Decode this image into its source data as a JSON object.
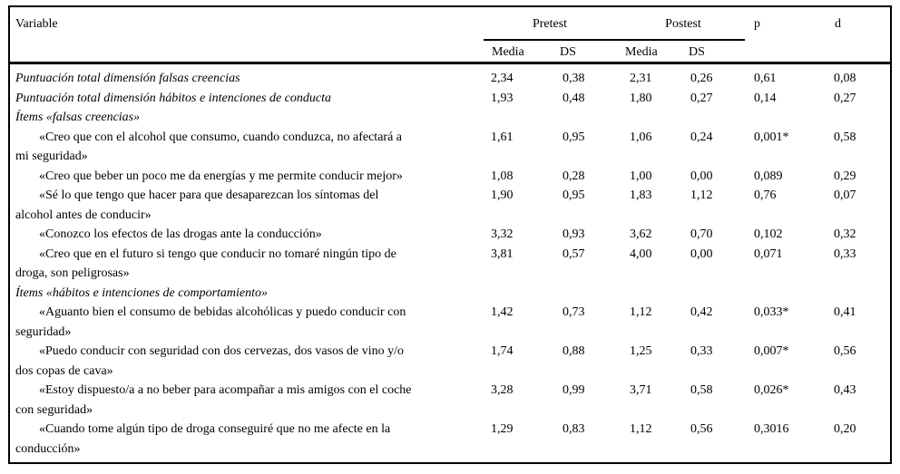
{
  "colors": {
    "text": "#000000",
    "background": "#ffffff",
    "rule": "#000000"
  },
  "table": {
    "headers": {
      "variable": "Variable",
      "pretest": "Pretest",
      "postest": "Postest",
      "pre_media": "Media",
      "pre_ds": "DS",
      "post_media": "Media",
      "post_ds": "DS",
      "p": "p",
      "d": "d"
    },
    "rows": [
      {
        "type": "total",
        "variable": "Puntuación total dimensión falsas creencias",
        "pre_media": "2,34",
        "pre_ds": "0,38",
        "post_media": "2,31",
        "post_ds": "0,26",
        "p": "0,61",
        "d": "0,08"
      },
      {
        "type": "total",
        "variable": "Puntuación total dimensión hábitos e intenciones de conducta",
        "pre_media": "1,93",
        "pre_ds": "0,48",
        "post_media": "1,80",
        "post_ds": "0,27",
        "p": "0,14",
        "d": "0,27"
      },
      {
        "type": "section",
        "variable": "Ítems «falsas creencias»",
        "pre_media": "",
        "pre_ds": "",
        "post_media": "",
        "post_ds": "",
        "p": "",
        "d": ""
      },
      {
        "type": "item",
        "variable": "«Creo que con el alcohol que consumo, cuando conduzca, no afectará a mi seguridad»",
        "pre_media": "1,61",
        "pre_ds": "0,95",
        "post_media": "1,06",
        "post_ds": "0,24",
        "p": "0,001*",
        "d": "0,58"
      },
      {
        "type": "item",
        "variable": "«Creo que beber un poco me da energías y me permite conducir mejor»",
        "pre_media": "1,08",
        "pre_ds": "0,28",
        "post_media": "1,00",
        "post_ds": "0,00",
        "p": "0,089",
        "d": "0,29"
      },
      {
        "type": "item",
        "variable": "«Sé lo que tengo que hacer para que desaparezcan los síntomas del alcohol antes de conducir»",
        "pre_media": "1,90",
        "pre_ds": "0,95",
        "post_media": "1,83",
        "post_ds": "1,12",
        "p": "0,76",
        "d": "0,07"
      },
      {
        "type": "item",
        "variable": "«Conozco los efectos de las drogas ante la conducción»",
        "pre_media": "3,32",
        "pre_ds": "0,93",
        "post_media": "3,62",
        "post_ds": "0,70",
        "p": "0,102",
        "d": "0,32"
      },
      {
        "type": "item",
        "variable": "«Creo que en el futuro si tengo que conducir no tomaré ningún tipo de droga, son peligrosas»",
        "pre_media": "3,81",
        "pre_ds": "0,57",
        "post_media": "4,00",
        "post_ds": "0,00",
        "p": "0,071",
        "d": "0,33"
      },
      {
        "type": "section",
        "variable": "Ítems «hábitos e intenciones de comportamiento»",
        "pre_media": "",
        "pre_ds": "",
        "post_media": "",
        "post_ds": "",
        "p": "",
        "d": ""
      },
      {
        "type": "item",
        "variable": "«Aguanto bien el consumo de bebidas alcohólicas y puedo conducir con seguridad»",
        "pre_media": "1,42",
        "pre_ds": "0,73",
        "post_media": "1,12",
        "post_ds": "0,42",
        "p": "0,033*",
        "d": "0,41"
      },
      {
        "type": "item",
        "variable": "«Puedo conducir con seguridad con dos cervezas, dos vasos de vino y/o dos copas de cava»",
        "pre_media": "1,74",
        "pre_ds": "0,88",
        "post_media": "1,25",
        "post_ds": "0,33",
        "p": "0,007*",
        "d": "0,56"
      },
      {
        "type": "item",
        "variable": "«Estoy dispuesto/a a no beber para acompañar a mis amigos con el coche con seguridad»",
        "pre_media": "3,28",
        "pre_ds": "0,99",
        "post_media": "3,71",
        "post_ds": "0,58",
        "p": "0,026*",
        "d": "0,43"
      },
      {
        "type": "item",
        "variable": "«Cuando tome algún tipo de droga conseguiré que no me afecte en la conducción»",
        "pre_media": "1,29",
        "pre_ds": "0,83",
        "post_media": "1,12",
        "post_ds": "0,56",
        "p": "0,3016",
        "d": "0,20"
      }
    ]
  }
}
